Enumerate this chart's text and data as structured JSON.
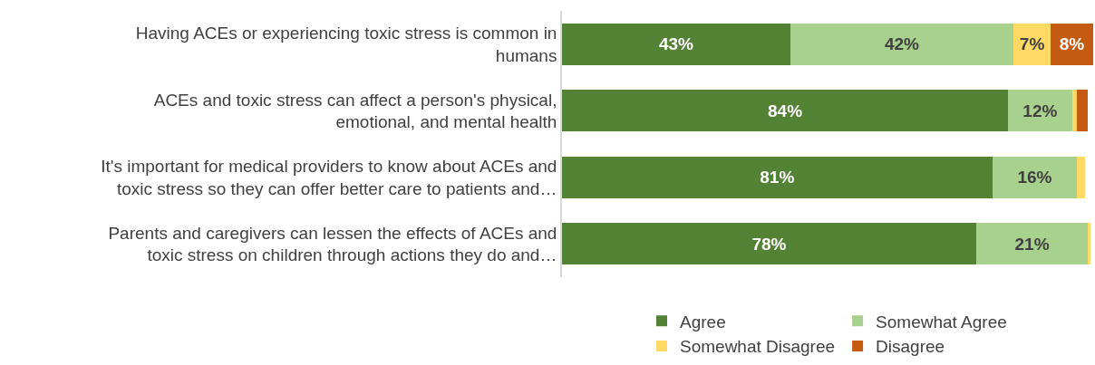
{
  "chart_data": {
    "type": "bar",
    "orientation": "horizontal",
    "stacked": true,
    "categories": [
      "Having ACEs or experiencing toxic stress is common in humans",
      "ACEs and toxic stress can affect a person's physical, emotional, and mental health",
      "It's important for medical providers to know about ACEs and toxic stress so they can offer better care to patients and…",
      "Parents and caregivers can lessen the effects of ACEs and toxic stress on children through actions they do and…"
    ],
    "xlim": [
      0,
      100
    ],
    "tick_labels": "y",
    "grid": false,
    "legend": "bottom",
    "series": [
      {
        "name": "Agree",
        "color": "#548235",
        "values": [
          43,
          84,
          81,
          78
        ],
        "value_labels": [
          "43%",
          "84%",
          "81%",
          "78%"
        ]
      },
      {
        "name": "Somewhat Agree",
        "color": "#a9d18e",
        "values": [
          42,
          12,
          16,
          21
        ],
        "value_labels": [
          "42%",
          "12%",
          "16%",
          "21%"
        ]
      },
      {
        "name": "Somewhat Disagree",
        "color": "#ffd966",
        "values": [
          7,
          1,
          1.4,
          0.5
        ],
        "value_labels": [
          "7%",
          null,
          null,
          null
        ]
      },
      {
        "name": "Disagree",
        "color": "#c55a11",
        "values": [
          8,
          2,
          0,
          0
        ],
        "value_labels": [
          "8%",
          null,
          null,
          null
        ]
      }
    ]
  }
}
